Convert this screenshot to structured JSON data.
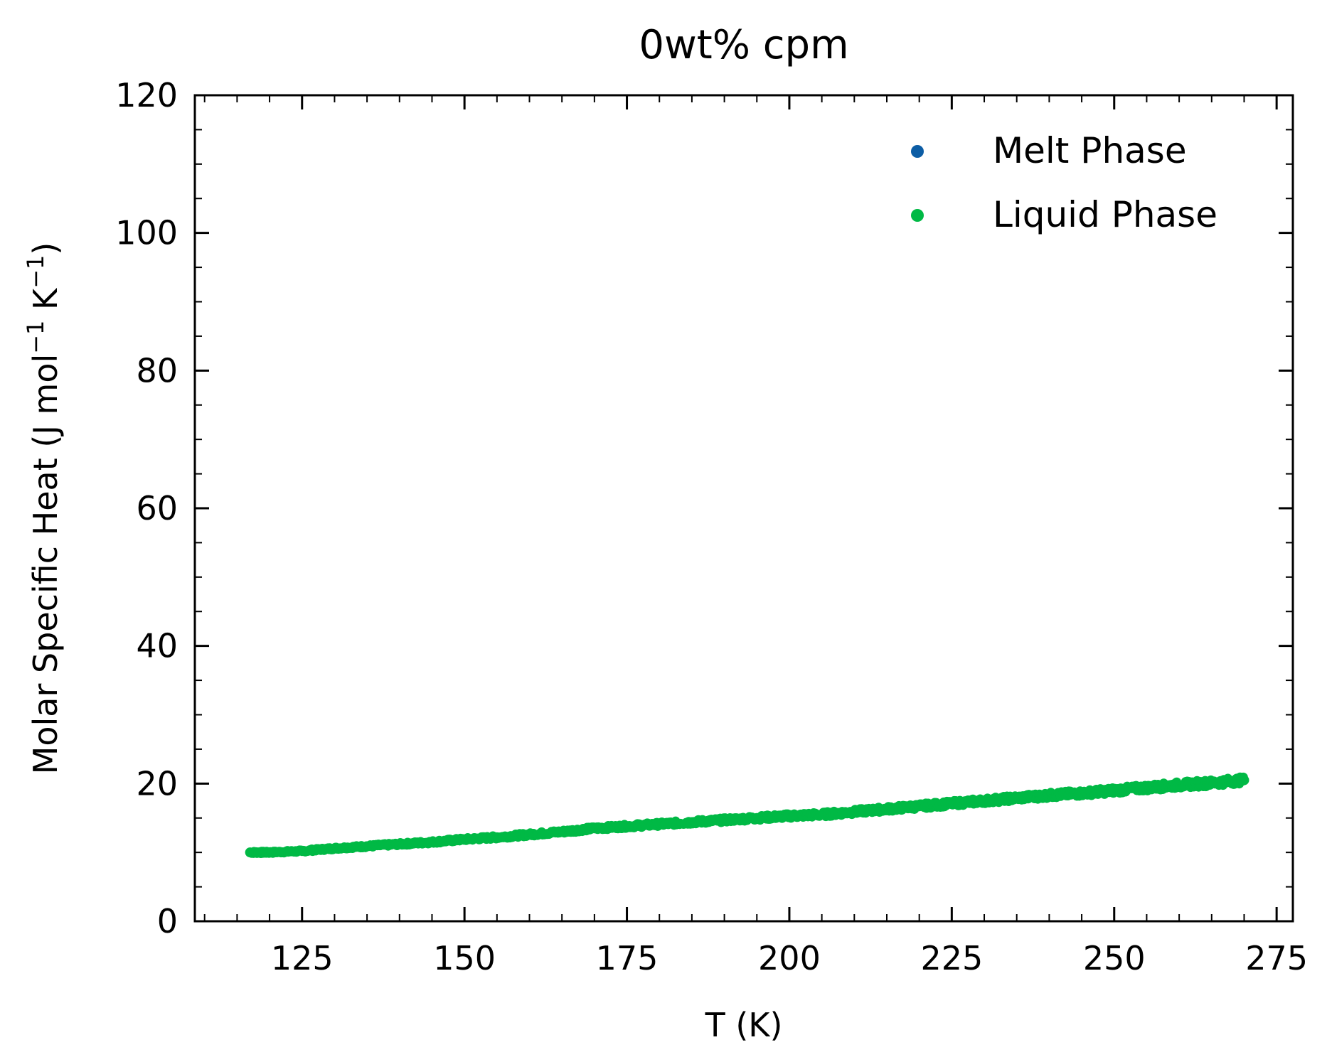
{
  "chart_data": {
    "type": "scatter",
    "title": "0wt% cpm",
    "xlabel": "T (K)",
    "ylabel_parts": {
      "prefix": "Molar Specific Heat (J mol",
      "sup1": "−1",
      "mid": " K",
      "sup2": "−1",
      "suffix": ")"
    },
    "xlim": [
      108.5,
      277.5
    ],
    "ylim": [
      0,
      120
    ],
    "x_ticks": [
      125,
      150,
      175,
      200,
      225,
      250,
      275
    ],
    "x_tick_labels": [
      "125",
      "150",
      "175",
      "200",
      "225",
      "250",
      "275"
    ],
    "x_minor_step": 5,
    "y_ticks": [
      0,
      20,
      40,
      60,
      80,
      100,
      120
    ],
    "y_tick_labels": [
      "0",
      "20",
      "40",
      "60",
      "80",
      "100",
      "120"
    ],
    "y_minor_step": 5,
    "tick_direction": "in",
    "grid": false,
    "legend": {
      "position": "top-right"
    },
    "series": [
      {
        "name": "Melt Phase",
        "color": "#0C5DA5",
        "points": []
      },
      {
        "name": "Liquid Phase",
        "color": "#00B945",
        "points": [
          [
            117,
            10.0
          ],
          [
            120,
            10.0
          ],
          [
            125,
            10.2
          ],
          [
            130,
            10.6
          ],
          [
            135,
            10.9
          ],
          [
            140,
            11.2
          ],
          [
            145,
            11.5
          ],
          [
            150,
            11.9
          ],
          [
            155,
            12.2
          ],
          [
            160,
            12.6
          ],
          [
            165,
            13.0
          ],
          [
            170,
            13.5
          ],
          [
            175,
            13.8
          ],
          [
            180,
            14.1
          ],
          [
            185,
            14.4
          ],
          [
            190,
            14.7
          ],
          [
            195,
            15.0
          ],
          [
            200,
            15.3
          ],
          [
            205,
            15.5
          ],
          [
            210,
            15.9
          ],
          [
            215,
            16.3
          ],
          [
            220,
            16.7
          ],
          [
            225,
            17.1
          ],
          [
            230,
            17.5
          ],
          [
            235,
            17.9
          ],
          [
            240,
            18.3
          ],
          [
            245,
            18.6
          ],
          [
            250,
            19.0
          ],
          [
            255,
            19.4
          ],
          [
            260,
            19.8
          ],
          [
            265,
            20.1
          ],
          [
            270,
            20.5
          ]
        ]
      }
    ]
  }
}
